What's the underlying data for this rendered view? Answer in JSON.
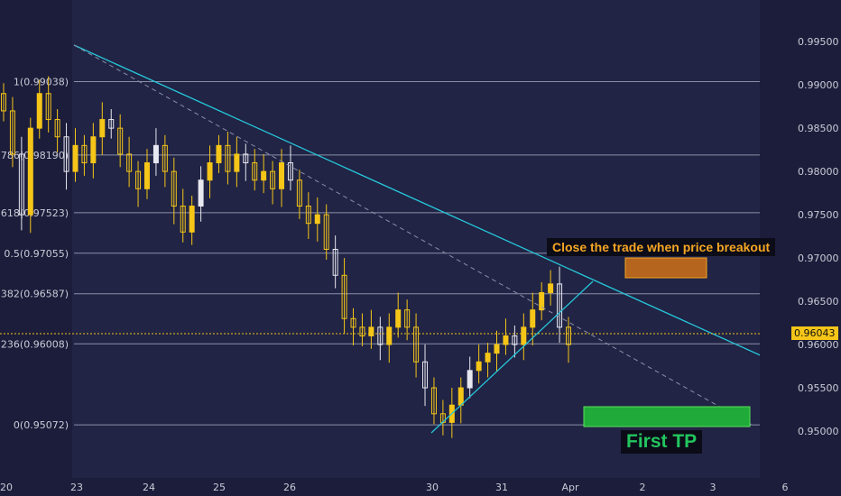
{
  "chart_data": {
    "type": "candlestick",
    "symbol_axis": "price",
    "ylim": [
      0.9485,
      0.9995
    ],
    "y_ticks": [
      "0.99500",
      "0.99000",
      "0.98500",
      "0.98000",
      "0.97500",
      "0.97000",
      "0.96500",
      "0.96000",
      "0.95500",
      "0.95000"
    ],
    "x_ticks": [
      "20",
      "23",
      "24",
      "25",
      "26",
      "30",
      "31",
      "Apr",
      "2",
      "3",
      "6"
    ],
    "fib_levels": [
      {
        "label": "1(0.99038)",
        "value": 0.99038
      },
      {
        "label": ".786(0.98190)",
        "value": 0.9819
      },
      {
        "label": ".618(0.97523)",
        "value": 0.97523
      },
      {
        "label": "0.5(0.97055)",
        "value": 0.97055
      },
      {
        "label": ".382(0.96587)",
        "value": 0.96587
      },
      {
        "label": ".236(0.96008)",
        "value": 0.96008
      },
      {
        "label": "0(0.95072)",
        "value": 0.95072
      }
    ],
    "current_price": "0.96043",
    "close_series": [
      0.987,
      0.982,
      0.975,
      0.985,
      0.989,
      0.986,
      0.984,
      0.98,
      0.983,
      0.981,
      0.984,
      0.986,
      0.985,
      0.982,
      0.98,
      0.978,
      0.981,
      0.983,
      0.98,
      0.976,
      0.973,
      0.976,
      0.979,
      0.981,
      0.983,
      0.98,
      0.982,
      0.981,
      0.979,
      0.98,
      0.978,
      0.981,
      0.979,
      0.976,
      0.974,
      0.975,
      0.971,
      0.968,
      0.963,
      0.962,
      0.961,
      0.962,
      0.96,
      0.962,
      0.964,
      0.962,
      0.958,
      0.955,
      0.952,
      0.951,
      0.953,
      0.955,
      0.957,
      0.958,
      0.959,
      0.96,
      0.961,
      0.96,
      0.962,
      0.964,
      0.966,
      0.967,
      0.962,
      0.96
    ]
  },
  "annotations": {
    "close_note": "Close the trade when price breakout",
    "first_tp": "First TP"
  },
  "colors": {
    "background": "#1c1d3b",
    "candle": "#f5c518",
    "candle_alt": "#e8e8f0",
    "trendline": "#26c6da",
    "fib_line": "#8a8fa8",
    "zone_orange": "#b5651d",
    "zone_green": "#1faa3a"
  }
}
